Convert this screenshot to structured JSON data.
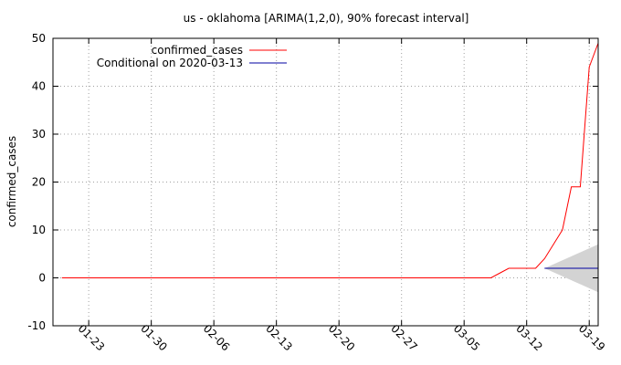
{
  "chart_data": {
    "type": "line",
    "title": "us - oklahoma [ARIMA(1,2,0), 90% forecast interval]",
    "xlabel": "",
    "ylabel": "confirmed_cases",
    "ylim": [
      -10,
      50
    ],
    "yticks": [
      -10,
      0,
      10,
      20,
      30,
      40,
      50
    ],
    "xlim": [
      "2020-01-19",
      "2020-03-20"
    ],
    "xticks": [
      {
        "date": "2020-01-23",
        "label": "01-23"
      },
      {
        "date": "2020-01-30",
        "label": "01-30"
      },
      {
        "date": "2020-02-06",
        "label": "02-06"
      },
      {
        "date": "2020-02-13",
        "label": "02-13"
      },
      {
        "date": "2020-02-20",
        "label": "02-20"
      },
      {
        "date": "2020-02-27",
        "label": "02-27"
      },
      {
        "date": "2020-03-05",
        "label": "03-05"
      },
      {
        "date": "2020-03-12",
        "label": "03-12"
      },
      {
        "date": "2020-03-19",
        "label": "03-19"
      }
    ],
    "grid": true,
    "legend_position": "top-left",
    "series": [
      {
        "name": "confirmed_cases",
        "color": "#ff0000",
        "x": [
          "2020-01-20",
          "2020-03-08",
          "2020-03-09",
          "2020-03-10",
          "2020-03-11",
          "2020-03-12",
          "2020-03-13",
          "2020-03-14",
          "2020-03-15",
          "2020-03-16",
          "2020-03-17",
          "2020-03-18",
          "2020-03-19",
          "2020-03-20"
        ],
        "y": [
          0,
          0,
          1,
          2,
          2,
          2,
          2,
          4,
          7,
          10,
          19,
          19,
          44,
          49
        ]
      },
      {
        "name": "Conditional on 2020-03-13",
        "color": "#0000a0",
        "x": [
          "2020-03-14",
          "2020-03-20"
        ],
        "y": [
          2,
          2
        ]
      }
    ],
    "forecast_interval": {
      "color": "#d3d3d3",
      "x": [
        "2020-03-14",
        "2020-03-20"
      ],
      "lower": [
        2,
        -3
      ],
      "upper": [
        2,
        7
      ]
    }
  }
}
